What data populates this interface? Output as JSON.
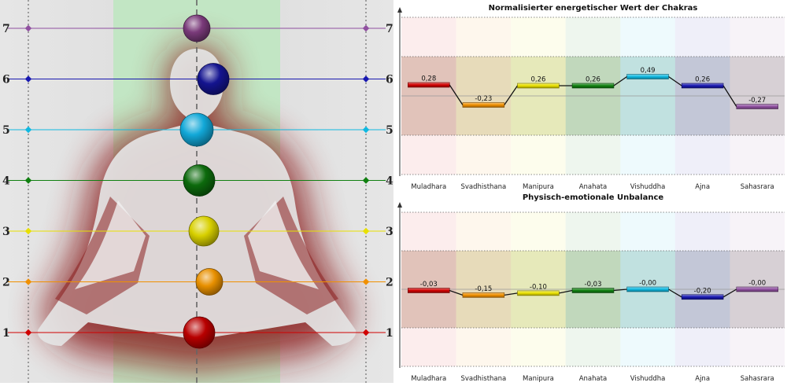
{
  "levels": [
    1,
    2,
    3,
    4,
    5,
    6,
    7
  ],
  "colors": {
    "muladhara": "#d00000",
    "svadhisthana": "#f09000",
    "manipura": "#e8e000",
    "anahata": "#108010",
    "vishuddha": "#10b8e0",
    "ajna": "#1818b0",
    "sahasrara": "#9050a0"
  },
  "chakra_body": [
    {
      "level": 7,
      "color": "#7a3a7a"
    },
    {
      "level": 6,
      "color": "#141490"
    },
    {
      "level": 5,
      "color": "#12a8d8"
    },
    {
      "level": 4,
      "color": "#0c6a0c"
    },
    {
      "level": 3,
      "color": "#d8d000"
    },
    {
      "level": 2,
      "color": "#e89000"
    },
    {
      "level": 1,
      "color": "#b80000"
    }
  ],
  "chart_data": [
    {
      "type": "bar",
      "title": "Normalisierter energetischer Wert der Chakras",
      "categories": [
        "Muladhara",
        "Svadhisthana",
        "Manipura",
        "Anahata",
        "Vishuddha",
        "Ajna",
        "Sahasrara"
      ],
      "values": [
        0.28,
        -0.23,
        0.26,
        0.26,
        0.49,
        0.26,
        -0.27
      ],
      "labels": [
        "0,28",
        "-0,23",
        "0,26",
        "0,26",
        "0,49",
        "0,26",
        "-0,27"
      ],
      "ylim": [
        -2,
        2
      ],
      "grid": true
    },
    {
      "type": "bar",
      "title": "Physisch-emotionale Unbalance",
      "categories": [
        "Muladhara",
        "Svadhisthana",
        "Manipura",
        "Anahata",
        "Vishuddha",
        "Ajna",
        "Sahasrara"
      ],
      "values": [
        -0.03,
        -0.15,
        -0.1,
        -0.03,
        -0.0,
        -0.2,
        -0.0
      ],
      "labels": [
        "-0,03",
        "-0,15",
        "-0,10",
        "-0,03",
        "-0,00",
        "-0,20",
        "-0,00"
      ],
      "ylim": [
        -2,
        2
      ],
      "grid": true
    }
  ]
}
